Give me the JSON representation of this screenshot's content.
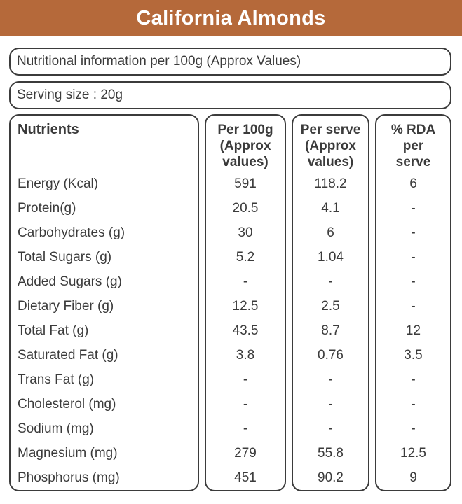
{
  "header": {
    "title": "California Almonds",
    "bg_color": "#B5693A",
    "text_color": "#FFFFFF"
  },
  "info_boxes": [
    {
      "text": "Nutritional information per 100g (Approx Values)"
    },
    {
      "text": "Serving size : 20g"
    }
  ],
  "colors": {
    "border": "#3B3B3B",
    "text": "#3B3B3B",
    "background": "#FFFFFF"
  },
  "table": {
    "columns": [
      {
        "header_lines": [
          "Nutrients"
        ]
      },
      {
        "header_lines": [
          "Per 100g",
          "(Approx",
          "values)"
        ]
      },
      {
        "header_lines": [
          "Per serve",
          "(Approx",
          "values)"
        ]
      },
      {
        "header_lines": [
          "% RDA",
          "per",
          "serve"
        ]
      }
    ],
    "rows": [
      {
        "nutrient": "Energy (Kcal)",
        "per_100g": "591",
        "per_serve": "118.2",
        "rda": "6"
      },
      {
        "nutrient": "Protein(g)",
        "per_100g": "20.5",
        "per_serve": "4.1",
        "rda": "-"
      },
      {
        "nutrient": "Carbohydrates (g)",
        "per_100g": "30",
        "per_serve": "6",
        "rda": "-"
      },
      {
        "nutrient": "Total Sugars (g)",
        "per_100g": "5.2",
        "per_serve": "1.04",
        "rda": "-"
      },
      {
        "nutrient": "Added Sugars (g)",
        "per_100g": "-",
        "per_serve": "-",
        "rda": "-"
      },
      {
        "nutrient": "Dietary Fiber (g)",
        "per_100g": "12.5",
        "per_serve": "2.5",
        "rda": "-"
      },
      {
        "nutrient": "Total Fat (g)",
        "per_100g": "43.5",
        "per_serve": "8.7",
        "rda": "12"
      },
      {
        "nutrient": "Saturated Fat (g)",
        "per_100g": "3.8",
        "per_serve": "0.76",
        "rda": "3.5"
      },
      {
        "nutrient": "Trans Fat (g)",
        "per_100g": "-",
        "per_serve": "-",
        "rda": "-"
      },
      {
        "nutrient": "Cholesterol (mg)",
        "per_100g": "-",
        "per_serve": "-",
        "rda": "-"
      },
      {
        "nutrient": "Sodium (mg)",
        "per_100g": "-",
        "per_serve": "-",
        "rda": "-"
      },
      {
        "nutrient": "Magnesium (mg)",
        "per_100g": "279",
        "per_serve": "55.8",
        "rda": "12.5"
      },
      {
        "nutrient": "Phosphorus (mg)",
        "per_100g": "451",
        "per_serve": "90.2",
        "rda": "9"
      }
    ]
  }
}
